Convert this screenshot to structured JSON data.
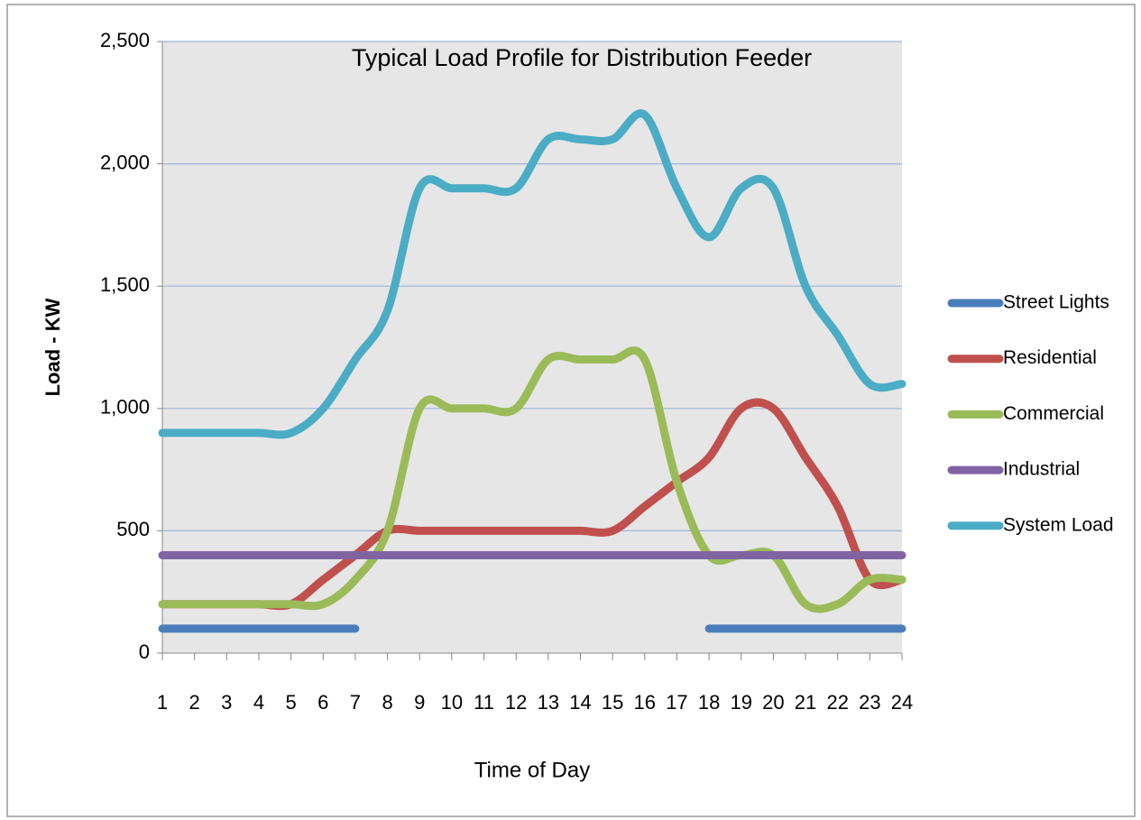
{
  "chart_data": {
    "type": "line",
    "title": "Typical Load Profile for Distribution Feeder",
    "x_label": "Time of Day",
    "y_label": "Load - KW",
    "categories": [
      1,
      2,
      3,
      4,
      5,
      6,
      7,
      8,
      9,
      10,
      11,
      12,
      13,
      14,
      15,
      16,
      17,
      18,
      19,
      20,
      21,
      22,
      23,
      24
    ],
    "series": [
      {
        "name": "Street Lights",
        "color": "#4a7ebb",
        "values": [
          100,
          100,
          100,
          100,
          100,
          100,
          100,
          null,
          null,
          null,
          null,
          null,
          null,
          null,
          null,
          null,
          null,
          100,
          100,
          100,
          100,
          100,
          100,
          100
        ]
      },
      {
        "name": "Residential",
        "color": "#c0504d",
        "values": [
          200,
          200,
          200,
          200,
          200,
          300,
          400,
          500,
          500,
          500,
          500,
          500,
          500,
          500,
          500,
          600,
          700,
          800,
          1000,
          1000,
          800,
          600,
          300,
          300
        ]
      },
      {
        "name": "Commercial",
        "color": "#9bbb59",
        "values": [
          200,
          200,
          200,
          200,
          200,
          200,
          300,
          500,
          1000,
          1000,
          1000,
          1000,
          1200,
          1200,
          1200,
          1200,
          700,
          400,
          400,
          400,
          200,
          200,
          300,
          300
        ]
      },
      {
        "name": "Industrial",
        "color": "#8064a2",
        "values": [
          400,
          400,
          400,
          400,
          400,
          400,
          400,
          400,
          400,
          400,
          400,
          400,
          400,
          400,
          400,
          400,
          400,
          400,
          400,
          400,
          400,
          400,
          400,
          400
        ]
      },
      {
        "name": "System Load",
        "color": "#4bacc6",
        "values": [
          900,
          900,
          900,
          900,
          900,
          1000,
          1200,
          1400,
          1900,
          1900,
          1900,
          1900,
          2100,
          2100,
          2100,
          2200,
          1900,
          1700,
          1900,
          1900,
          1500,
          1300,
          1100,
          1100
        ]
      }
    ],
    "ylim": [
      0,
      2500
    ],
    "yticks": [
      0,
      500,
      {
        "value": 1000,
        "label": "1,000"
      },
      {
        "value": 1500,
        "label": "1,500"
      },
      {
        "value": 2000,
        "label": "2,000"
      },
      {
        "value": 2500,
        "label": "2,500"
      }
    ],
    "grid": true,
    "legend": "right"
  }
}
